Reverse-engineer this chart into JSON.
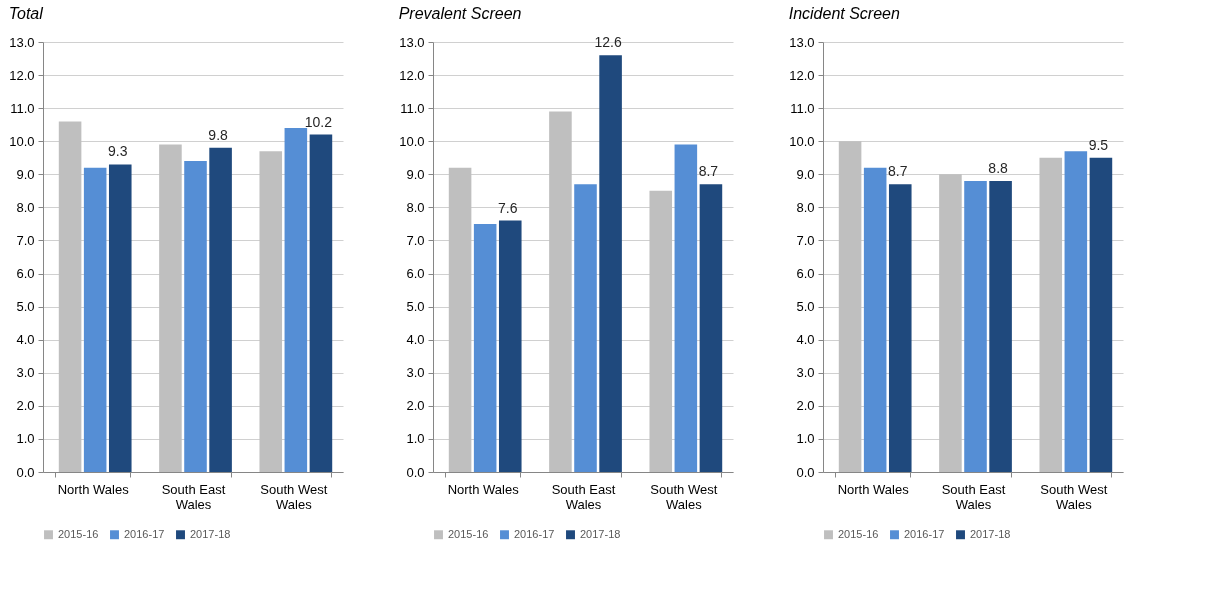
{
  "chart_data": [
    {
      "type": "bar",
      "title": "Total",
      "categories": [
        "North Wales",
        "South East Wales",
        "South West Wales"
      ],
      "series": [
        {
          "name": "2015-16",
          "color": "#bfbfbf",
          "values": [
            10.6,
            9.9,
            9.7
          ]
        },
        {
          "name": "2016-17",
          "color": "#558ed5",
          "values": [
            9.2,
            9.4,
            10.4
          ]
        },
        {
          "name": "2017-18",
          "color": "#1f497d",
          "values": [
            9.3,
            9.8,
            10.2
          ],
          "value_labels": [
            "9.3",
            "9.8",
            "10.2"
          ]
        }
      ],
      "ylim": [
        0,
        13
      ],
      "yticks": [
        {
          "value": 0,
          "label": "0.0"
        },
        {
          "value": 1,
          "label": "1.0"
        },
        {
          "value": 2,
          "label": "2.0"
        },
        {
          "value": 3,
          "label": "3.0"
        },
        {
          "value": 4,
          "label": "4.0"
        },
        {
          "value": 5,
          "label": "5.0"
        },
        {
          "value": 6,
          "label": "6.0"
        },
        {
          "value": 7,
          "label": "7.0"
        },
        {
          "value": 8,
          "label": "8.0"
        },
        {
          "value": 9,
          "label": "9.0"
        },
        {
          "value": 10,
          "label": "10.0"
        },
        {
          "value": 11,
          "label": "11.0"
        },
        {
          "value": 12,
          "label": "12.0"
        },
        {
          "value": 13,
          "label": "13.0"
        }
      ],
      "grid": "y",
      "legend": "bottom"
    },
    {
      "type": "bar",
      "title": "Prevalent Screen",
      "categories": [
        "North Wales",
        "South East Wales",
        "South West Wales"
      ],
      "series": [
        {
          "name": "2015-16",
          "color": "#bfbfbf",
          "values": [
            9.2,
            10.9,
            8.5
          ]
        },
        {
          "name": "2016-17",
          "color": "#558ed5",
          "values": [
            7.5,
            8.7,
            9.9
          ]
        },
        {
          "name": "2017-18",
          "color": "#1f497d",
          "values": [
            7.6,
            12.6,
            8.7
          ],
          "value_labels": [
            "7.6",
            "12.6",
            "8.7"
          ]
        }
      ],
      "ylim": [
        0,
        13
      ],
      "yticks": [
        {
          "value": 0,
          "label": "0.0"
        },
        {
          "value": 1,
          "label": "1.0"
        },
        {
          "value": 2,
          "label": "2.0"
        },
        {
          "value": 3,
          "label": "3.0"
        },
        {
          "value": 4,
          "label": "4.0"
        },
        {
          "value": 5,
          "label": "5.0"
        },
        {
          "value": 6,
          "label": "6.0"
        },
        {
          "value": 7,
          "label": "7.0"
        },
        {
          "value": 8,
          "label": "8.0"
        },
        {
          "value": 9,
          "label": "9.0"
        },
        {
          "value": 10,
          "label": "10.0"
        },
        {
          "value": 11,
          "label": "11.0"
        },
        {
          "value": 12,
          "label": "12.0"
        },
        {
          "value": 13,
          "label": "13.0"
        }
      ],
      "grid": "y",
      "legend": "bottom"
    },
    {
      "type": "bar",
      "title": "Incident Screen",
      "categories": [
        "North Wales",
        "South East Wales",
        "South West Wales"
      ],
      "series": [
        {
          "name": "2015-16",
          "color": "#bfbfbf",
          "values": [
            10.0,
            9.0,
            9.5
          ]
        },
        {
          "name": "2016-17",
          "color": "#558ed5",
          "values": [
            9.2,
            8.8,
            9.7
          ]
        },
        {
          "name": "2017-18",
          "color": "#1f497d",
          "values": [
            8.7,
            8.8,
            9.5
          ],
          "value_labels": [
            "8.7",
            "8.8",
            "9.5"
          ]
        }
      ],
      "ylim": [
        0,
        13
      ],
      "yticks": [
        {
          "value": 0,
          "label": "0.0"
        },
        {
          "value": 1,
          "label": "1.0"
        },
        {
          "value": 2,
          "label": "2.0"
        },
        {
          "value": 3,
          "label": "3.0"
        },
        {
          "value": 4,
          "label": "4.0"
        },
        {
          "value": 5,
          "label": "5.0"
        },
        {
          "value": 6,
          "label": "6.0"
        },
        {
          "value": 7,
          "label": "7.0"
        },
        {
          "value": 8,
          "label": "8.0"
        },
        {
          "value": 9,
          "label": "9.0"
        },
        {
          "value": 10,
          "label": "10.0"
        },
        {
          "value": 11,
          "label": "11.0"
        },
        {
          "value": 12,
          "label": "12.0"
        },
        {
          "value": 13,
          "label": "13.0"
        }
      ],
      "grid": "y",
      "legend": "bottom"
    }
  ]
}
